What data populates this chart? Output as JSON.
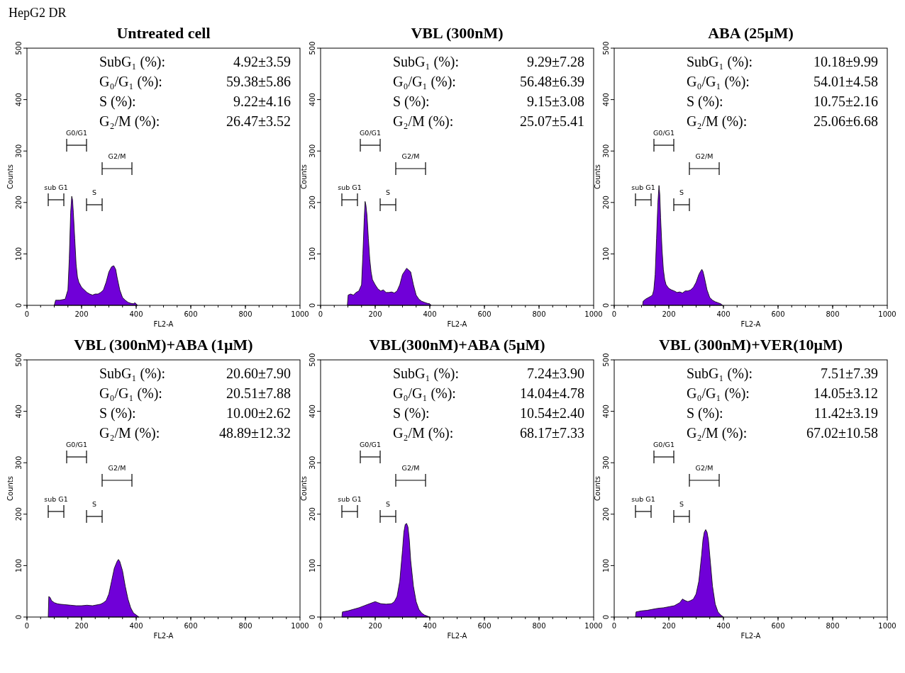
{
  "chart_data": [
    {
      "type": "area",
      "title": "Untreated cell",
      "subtitle": "HepG2 DR",
      "xlabel": "FL2-A",
      "ylabel": "Counts",
      "xlim": [
        0,
        1000
      ],
      "ylim": [
        0,
        500
      ],
      "xticks": [
        0,
        200,
        400,
        600,
        800,
        1000
      ],
      "yticks": [
        0,
        100,
        200,
        300,
        400,
        500
      ],
      "series": [
        {
          "color": "#7000d8",
          "x": [
            100,
            105,
            110,
            120,
            130,
            140,
            150,
            155,
            160,
            164,
            167,
            170,
            175,
            180,
            185,
            190,
            200,
            210,
            220,
            230,
            240,
            250,
            260,
            270,
            280,
            290,
            300,
            310,
            318,
            325,
            330,
            340,
            350,
            360,
            370,
            380,
            390,
            395,
            400,
            405
          ],
          "values": [
            0,
            10,
            10,
            10,
            11,
            12,
            30,
            90,
            180,
            212,
            205,
            180,
            130,
            80,
            55,
            45,
            35,
            30,
            25,
            22,
            20,
            22,
            22,
            25,
            30,
            45,
            65,
            75,
            77,
            70,
            55,
            30,
            15,
            10,
            6,
            4,
            3,
            5,
            3,
            0
          ]
        }
      ],
      "annotations": [
        "sub G1",
        "S",
        "G0/G1",
        "G2/M",
        "SubG₁ (%):",
        "4.92±3.59",
        "G₀/G₁ (%):",
        "59.38±5.86",
        "S (%):",
        "9.22±4.16",
        "G₂/M (%):",
        "26.47±3.52"
      ]
    },
    {
      "type": "area",
      "title": "VBL (300nM)",
      "xlabel": "FL2-A",
      "ylabel": "Counts",
      "xlim": [
        0,
        1000
      ],
      "ylim": [
        0,
        500
      ],
      "xticks": [
        0,
        200,
        400,
        600,
        800,
        1000
      ],
      "yticks": [
        0,
        100,
        200,
        300,
        400,
        500
      ],
      "series": [
        {
          "color": "#7000d8",
          "x": [
            98,
            101,
            110,
            120,
            130,
            140,
            150,
            155,
            160,
            163,
            166,
            170,
            175,
            180,
            185,
            190,
            200,
            210,
            220,
            230,
            240,
            250,
            260,
            270,
            280,
            290,
            300,
            310,
            315,
            320,
            330,
            340,
            350,
            360,
            370,
            380,
            390,
            400,
            405
          ],
          "values": [
            0,
            20,
            22,
            20,
            25,
            28,
            40,
            100,
            170,
            202,
            195,
            175,
            130,
            90,
            65,
            50,
            40,
            32,
            28,
            30,
            25,
            25,
            26,
            24,
            28,
            40,
            60,
            68,
            72,
            70,
            65,
            40,
            20,
            12,
            8,
            6,
            4,
            3,
            0
          ]
        }
      ],
      "annotations": [
        "sub G1",
        "S",
        "G0/G1",
        "G2/M",
        "SubG₁ (%):",
        "9.29±7.28",
        "G₀/G₁ (%):",
        "56.48±6.39",
        "S (%):",
        "9.15±3.08",
        "G₂/M (%):",
        "25.07±5.41"
      ]
    },
    {
      "type": "area",
      "title": "ABA (25μM)",
      "xlabel": "FL2-A",
      "ylabel": "Counts",
      "xlim": [
        0,
        1000
      ],
      "ylim": [
        0,
        500
      ],
      "xticks": [
        0,
        200,
        400,
        600,
        800,
        1000
      ],
      "yticks": [
        0,
        100,
        200,
        300,
        400,
        500
      ],
      "series": [
        {
          "color": "#7000d8",
          "x": [
            104,
            106,
            115,
            125,
            135,
            140,
            145,
            150,
            155,
            160,
            164,
            167,
            170,
            175,
            180,
            185,
            190,
            200,
            210,
            220,
            230,
            240,
            250,
            260,
            270,
            280,
            290,
            300,
            310,
            315,
            321,
            325,
            330,
            340,
            350,
            360,
            370,
            380,
            390,
            397
          ],
          "values": [
            0,
            8,
            12,
            15,
            18,
            20,
            30,
            60,
            130,
            200,
            233,
            215,
            170,
            110,
            70,
            50,
            40,
            33,
            30,
            28,
            25,
            26,
            24,
            28,
            28,
            30,
            35,
            45,
            60,
            65,
            70,
            66,
            55,
            30,
            15,
            10,
            7,
            5,
            3,
            0
          ]
        }
      ],
      "annotations": [
        "sub G1",
        "S",
        "G0/G1",
        "G2/M",
        "SubG₁ (%):",
        "10.18±9.99",
        "G₀/G₁ (%):",
        "54.01±4.58",
        "S (%):",
        "10.75±2.16",
        "G₂/M (%):",
        "25.06±6.68"
      ]
    },
    {
      "type": "area",
      "title": "VBL (300nM)+ABA (1μM)",
      "xlabel": "FL2-A",
      "ylabel": "Counts",
      "xlim": [
        0,
        1000
      ],
      "ylim": [
        0,
        500
      ],
      "xticks": [
        0,
        200,
        400,
        600,
        800,
        1000
      ],
      "yticks": [
        0,
        100,
        200,
        300,
        400,
        500
      ],
      "series": [
        {
          "color": "#7000d8",
          "x": [
            78,
            80,
            85,
            90,
            100,
            110,
            120,
            140,
            160,
            180,
            200,
            220,
            240,
            260,
            270,
            280,
            290,
            300,
            310,
            320,
            330,
            335,
            340,
            350,
            360,
            370,
            380,
            390,
            400,
            410
          ],
          "values": [
            0,
            40,
            38,
            32,
            28,
            26,
            25,
            24,
            23,
            22,
            22,
            23,
            22,
            24,
            25,
            28,
            32,
            45,
            70,
            95,
            108,
            112,
            108,
            90,
            60,
            35,
            18,
            8,
            4,
            0
          ]
        }
      ],
      "annotations": [
        "sub G1",
        "S",
        "G0/G1",
        "G2/M",
        "SubG₁ (%):",
        "20.60±7.90",
        "G₀/G₁ (%):",
        "20.51±7.88",
        "S (%):",
        "10.00±2.62",
        "G₂/M (%):",
        "48.89±12.32"
      ]
    },
    {
      "type": "area",
      "title": "VBL(300nM)+ABA (5μM)",
      "xlabel": "FL2-A",
      "ylabel": "Counts",
      "xlim": [
        0,
        1000
      ],
      "ylim": [
        0,
        500
      ],
      "xticks": [
        0,
        200,
        400,
        600,
        800,
        1000
      ],
      "yticks": [
        0,
        100,
        200,
        300,
        400,
        500
      ],
      "series": [
        {
          "color": "#7000d8",
          "x": [
            78,
            80,
            100,
            120,
            140,
            160,
            180,
            200,
            210,
            220,
            240,
            260,
            270,
            280,
            290,
            300,
            305,
            310,
            315,
            320,
            325,
            330,
            340,
            350,
            360,
            370,
            380,
            390,
            400
          ],
          "values": [
            0,
            10,
            12,
            15,
            18,
            22,
            26,
            30,
            28,
            26,
            25,
            26,
            30,
            40,
            70,
            130,
            165,
            180,
            182,
            175,
            150,
            110,
            60,
            30,
            15,
            8,
            4,
            2,
            0
          ]
        }
      ],
      "annotations": [
        "sub G1",
        "S",
        "G0/G1",
        "G2/M",
        "SubG₁ (%):",
        "7.24±3.90",
        "G₀/G₁ (%):",
        "14.04±4.78",
        "S (%):",
        "10.54±2.40",
        "G₂/M (%):",
        "68.17±7.33"
      ]
    },
    {
      "type": "area",
      "title": "VBL (300nM)+VER(10μM)",
      "xlabel": "FL2-A",
      "ylabel": "Counts",
      "xlim": [
        0,
        1000
      ],
      "ylim": [
        0,
        500
      ],
      "xticks": [
        0,
        200,
        400,
        600,
        800,
        1000
      ],
      "yticks": [
        0,
        100,
        200,
        300,
        400,
        500
      ],
      "series": [
        {
          "color": "#7000d8",
          "x": [
            78,
            80,
            100,
            120,
            140,
            160,
            180,
            200,
            220,
            240,
            250,
            260,
            270,
            280,
            290,
            300,
            310,
            320,
            325,
            330,
            335,
            340,
            345,
            350,
            360,
            370,
            380,
            390,
            400
          ],
          "values": [
            0,
            10,
            12,
            13,
            15,
            17,
            18,
            20,
            22,
            28,
            35,
            32,
            30,
            32,
            35,
            45,
            70,
            120,
            150,
            165,
            170,
            165,
            150,
            120,
            60,
            25,
            10,
            4,
            0
          ]
        }
      ],
      "annotations": [
        "sub G1",
        "S",
        "G0/G1",
        "G2/M",
        "SubG₁ (%):",
        "7.51±7.39",
        "G₀/G₁ (%):",
        "14.05±3.12",
        "S (%):",
        "11.42±3.19",
        "G₂/M (%):",
        "67.02±10.58"
      ]
    }
  ]
}
